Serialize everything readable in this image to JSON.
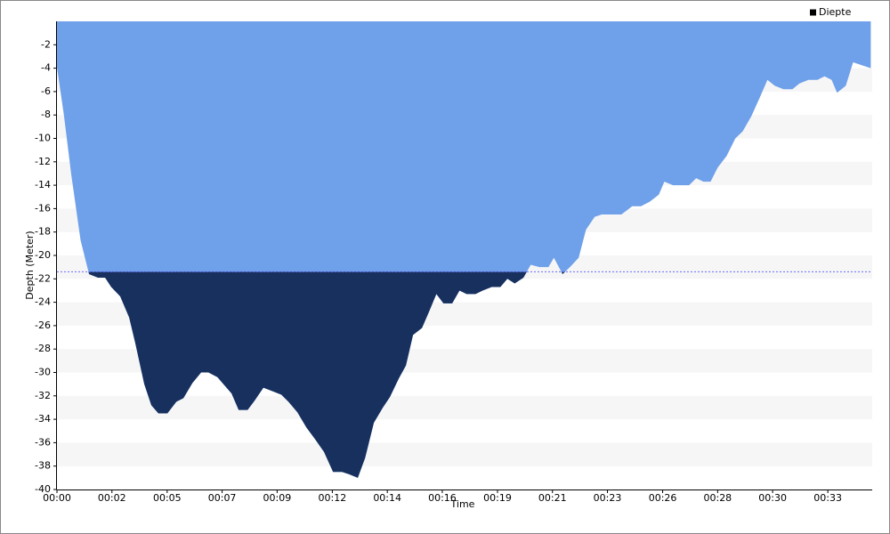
{
  "chart_data": {
    "type": "area",
    "x_label": "Time",
    "y_label": "Depth (Meter)",
    "xlim": [
      0,
      34.55
    ],
    "ylim": [
      -40,
      0
    ],
    "xticks": [
      {
        "value": 0,
        "label": "00:00"
      },
      {
        "value": 2.33,
        "label": "00:02"
      },
      {
        "value": 4.67,
        "label": "00:05"
      },
      {
        "value": 7,
        "label": "00:07"
      },
      {
        "value": 9.33,
        "label": "00:09"
      },
      {
        "value": 11.67,
        "label": "00:12"
      },
      {
        "value": 14,
        "label": "00:14"
      },
      {
        "value": 16.33,
        "label": "00:16"
      },
      {
        "value": 18.67,
        "label": "00:19"
      },
      {
        "value": 21,
        "label": "00:21"
      },
      {
        "value": 23.33,
        "label": "00:23"
      },
      {
        "value": 25.67,
        "label": "00:26"
      },
      {
        "value": 28,
        "label": "00:28"
      },
      {
        "value": 30.33,
        "label": "00:30"
      },
      {
        "value": 32.67,
        "label": "00:33"
      }
    ],
    "yticks": [
      -2,
      -4,
      -6,
      -8,
      -10,
      -12,
      -14,
      -16,
      -18,
      -20,
      -22,
      -24,
      -26,
      -28,
      -30,
      -32,
      -34,
      -36,
      -38,
      -40
    ],
    "threshold": -21.4,
    "threshold_color": "#6b6bff",
    "below_color": "#17305e",
    "band_color": "#f6f6f6",
    "legend_position": "top-right",
    "x": [
      0,
      0.3,
      0.6,
      1.0,
      1.36,
      1.74,
      2.04,
      2.3,
      2.68,
      3.06,
      3.32,
      3.7,
      4.0,
      4.3,
      4.68,
      5.06,
      5.36,
      5.74,
      6.11,
      6.42,
      6.8,
      7.1,
      7.4,
      7.7,
      8.08,
      8.38,
      8.75,
      9.13,
      9.51,
      9.81,
      10.19,
      10.57,
      10.94,
      11.32,
      11.7,
      12.08,
      12.38,
      12.75,
      13.06,
      13.43,
      13.81,
      14.11,
      14.49,
      14.79,
      15.09,
      15.47,
      15.77,
      16.08,
      16.38,
      16.75,
      17.06,
      17.36,
      17.74,
      18.04,
      18.42,
      18.79,
      19.09,
      19.4,
      19.77,
      20.08,
      20.45,
      20.83,
      21.06,
      21.43,
      21.74,
      22.11,
      22.42,
      22.79,
      23.09,
      23.47,
      23.92,
      24.38,
      24.75,
      25.13,
      25.51,
      25.74,
      26.11,
      26.49,
      26.79,
      27.09,
      27.4,
      27.7,
      28.0,
      28.38,
      28.75,
      29.06,
      29.43,
      29.81,
      30.11,
      30.42,
      30.79,
      31.17,
      31.47,
      31.85,
      32.23,
      32.53,
      32.83,
      33.06,
      33.43,
      33.74,
      34.19,
      34.49
    ],
    "series": [
      {
        "name": "Diepte",
        "color": "#6fa0ea",
        "values": [
          -3.9,
          -8.1,
          -13,
          -18.7,
          -21.6,
          -21.9,
          -21.9,
          -22.7,
          -23.5,
          -25.3,
          -27.5,
          -31,
          -32.8,
          -33.5,
          -33.5,
          -32.5,
          -32.2,
          -30.9,
          -30,
          -30,
          -30.4,
          -31.1,
          -31.8,
          -33.2,
          -33.2,
          -32.4,
          -31.3,
          -31.6,
          -31.9,
          -32.5,
          -33.4,
          -34.7,
          -35.7,
          -36.8,
          -38.5,
          -38.5,
          -38.7,
          -39,
          -37.3,
          -34.3,
          -33,
          -32.1,
          -30.5,
          -29.4,
          -26.8,
          -26.2,
          -24.8,
          -23.3,
          -24.1,
          -24.1,
          -23,
          -23.3,
          -23.3,
          -23,
          -22.7,
          -22.7,
          -22,
          -22.4,
          -21.9,
          -20.8,
          -21,
          -21,
          -20.2,
          -21.6,
          -21,
          -20.2,
          -17.8,
          -16.7,
          -16.5,
          -16.5,
          -16.5,
          -15.8,
          -15.8,
          -15.4,
          -14.8,
          -13.7,
          -14,
          -14,
          -14,
          -13.4,
          -13.7,
          -13.7,
          -12.5,
          -11.5,
          -10,
          -9.4,
          -8.1,
          -6.4,
          -5,
          -5.5,
          -5.8,
          -5.8,
          -5.3,
          -5,
          -5,
          -4.7,
          -5,
          -6.1,
          -5.5,
          -3.5,
          -3.8,
          -4
        ]
      }
    ]
  }
}
